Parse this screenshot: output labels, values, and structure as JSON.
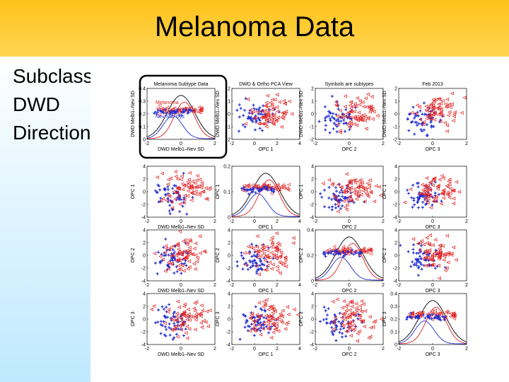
{
  "slide": {
    "title": "Melanoma Data",
    "bullets": [
      "Subclass",
      "DWD",
      "Direction"
    ]
  },
  "colors": {
    "class_a": "#e02020",
    "class_b": "#1f2bd0",
    "highlight_box": "#000000"
  },
  "panel_titles": [
    "Melanoma Subtype Data",
    "DWD & Ortho PCA View",
    "Symbols are subtypes",
    "Feb 2013"
  ],
  "row_ylabels": [
    "DWD Melb1–Nev SD",
    "OPC 1",
    "OPC 2",
    "OPC 3"
  ],
  "col_xlabels": [
    "DWD Melb1–Nev SD",
    "OPC 1",
    "OPC 2",
    "OPC 3"
  ],
  "legend_labels": [
    "Melanoma",
    "Nev/Sub Dys"
  ],
  "axis_ticks": {
    "x": [
      [
        "-2",
        "0",
        "2"
      ],
      [
        "-2",
        "0",
        "2",
        "4"
      ],
      [
        "-2",
        "0",
        "2"
      ],
      [
        "-2",
        "0",
        "2"
      ]
    ],
    "y_diag": [
      [
        "0.4",
        "0.3",
        "0.2",
        "0.1",
        "0"
      ],
      [
        "0.2",
        "0.1",
        "0"
      ],
      [
        "0.4",
        "0.2",
        "0"
      ],
      [
        "0.4",
        "0.3",
        "0.2",
        "0.1",
        "0"
      ]
    ],
    "y_off": [
      [
        "2",
        "1",
        "0",
        "-1",
        "-2"
      ],
      [
        "4",
        "2",
        "0",
        "-2",
        "-4"
      ],
      [
        "4",
        "2",
        "0",
        "-2",
        "-4"
      ],
      [
        "4",
        "2",
        "0",
        "-2",
        "-4"
      ]
    ]
  }
}
